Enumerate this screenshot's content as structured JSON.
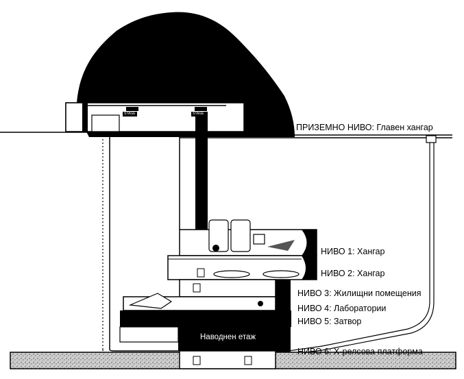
{
  "labels": {
    "ground": "ПРИЗЕМНО НИВО: Главен хангар",
    "level1": "НИВО 1: Хангар",
    "level2": "НИВО 2: Хангар",
    "level3": "НИВО 3: Жилищни помещения",
    "level4": "НИВО 4: Лаборатории",
    "level5": "НИВО 5: Затвор",
    "level6": "НИВО 6: Х-релсова платформа",
    "flooded": "Наводнен етаж"
  },
  "signs": {
    "left": "STAGE",
    "right": "STAGE"
  }
}
